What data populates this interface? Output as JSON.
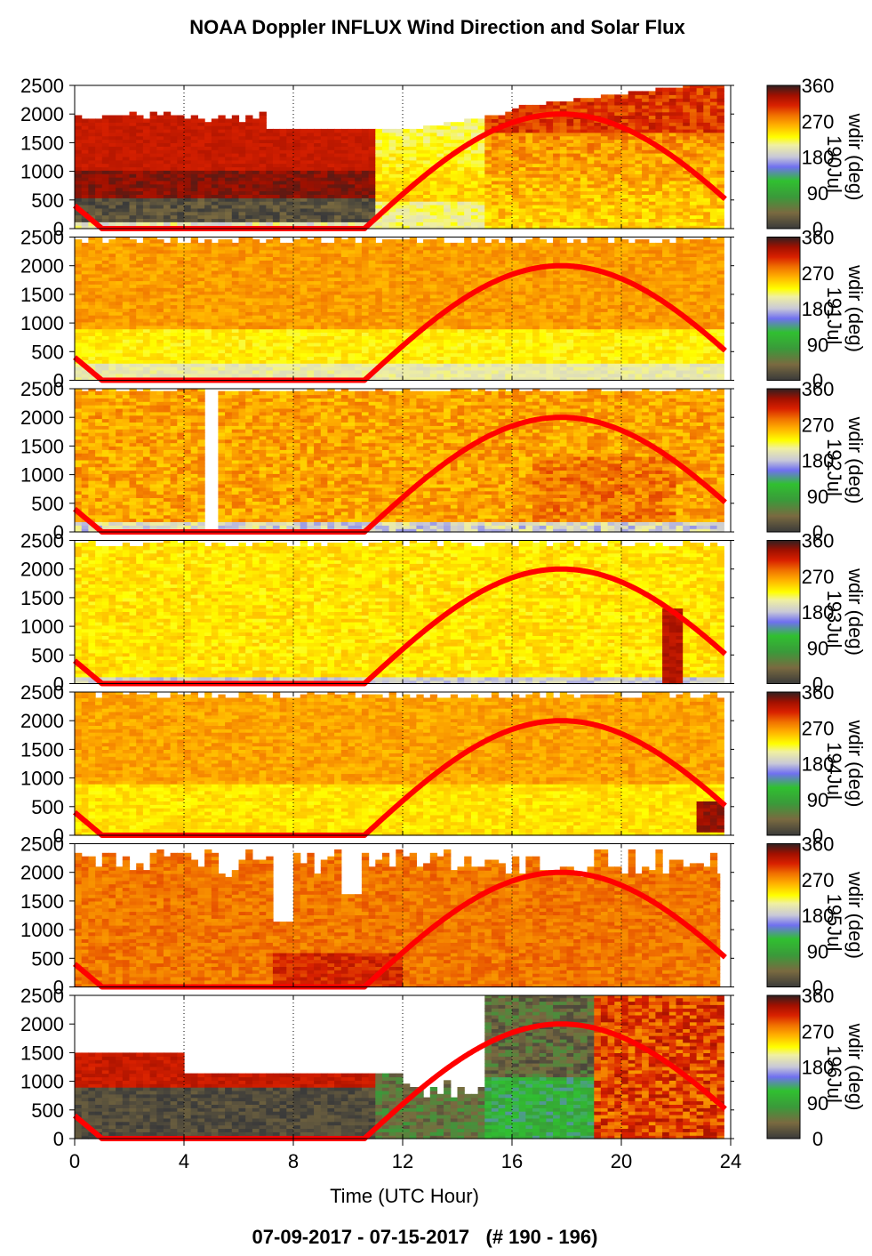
{
  "chart_data": {
    "type": "heatmap",
    "title": "NOAA Doppler INFLUX Wind Direction and Solar Flux",
    "footer": "07-09-2017 - 07-15-2017   (# 190 - 196)",
    "xlabel": "Time (UTC Hour)",
    "xlim": [
      0,
      24
    ],
    "ylim": [
      0,
      2500
    ],
    "x_ticks": [
      0,
      4,
      8,
      12,
      16,
      20,
      24
    ],
    "y_ticks": [
      0,
      500,
      1000,
      1500,
      2000,
      2500
    ],
    "x_grid_dotted": [
      4,
      8,
      12,
      16,
      20,
      24
    ],
    "colorbar": {
      "label": "wdir (deg)",
      "ticks": [
        0,
        90,
        180,
        270,
        360
      ],
      "colors": {
        "0": "#3a3a3a",
        "40": "#7a6a40",
        "80": "#3a9a3a",
        "120": "#30c030",
        "155": "#7070f0",
        "180": "#c8c8d8",
        "210": "#f0f0a0",
        "230": "#ffff00",
        "260": "#ffb000",
        "285": "#f07000",
        "310": "#d82000",
        "335": "#a01000",
        "360": "#302020"
      }
    },
    "solar_flux_curve": {
      "color": "#ff0000",
      "zero_before_hour": 1.0,
      "zero_until_hour": 10.6,
      "peak_hour": 17.8,
      "curve_start_hour": 0.0,
      "curve_end_hour": 23.8,
      "value_at_start": 400,
      "peak_value": 2000,
      "value_at_end": 550
    },
    "panels": [
      {
        "day_label": "190",
        "day_of_year": 190,
        "data_end_hour": 23.75,
        "description": "dark-red upper layer, dark low levels early"
      },
      {
        "day_label": "191",
        "day_of_year": 191,
        "data_end_hour": 23.75
      },
      {
        "day_label": "192",
        "day_of_year": 192,
        "data_end_hour": 23.75
      },
      {
        "day_label": "193",
        "day_of_year": 193,
        "data_end_hour": 23.75
      },
      {
        "day_label": "194",
        "day_of_year": 194,
        "data_end_hour": 23.75
      },
      {
        "day_label": "195",
        "day_of_year": 195,
        "data_end_hour": 23.6
      },
      {
        "day_label": "196",
        "day_of_year": 196,
        "data_end_hour": 23.75
      }
    ]
  }
}
